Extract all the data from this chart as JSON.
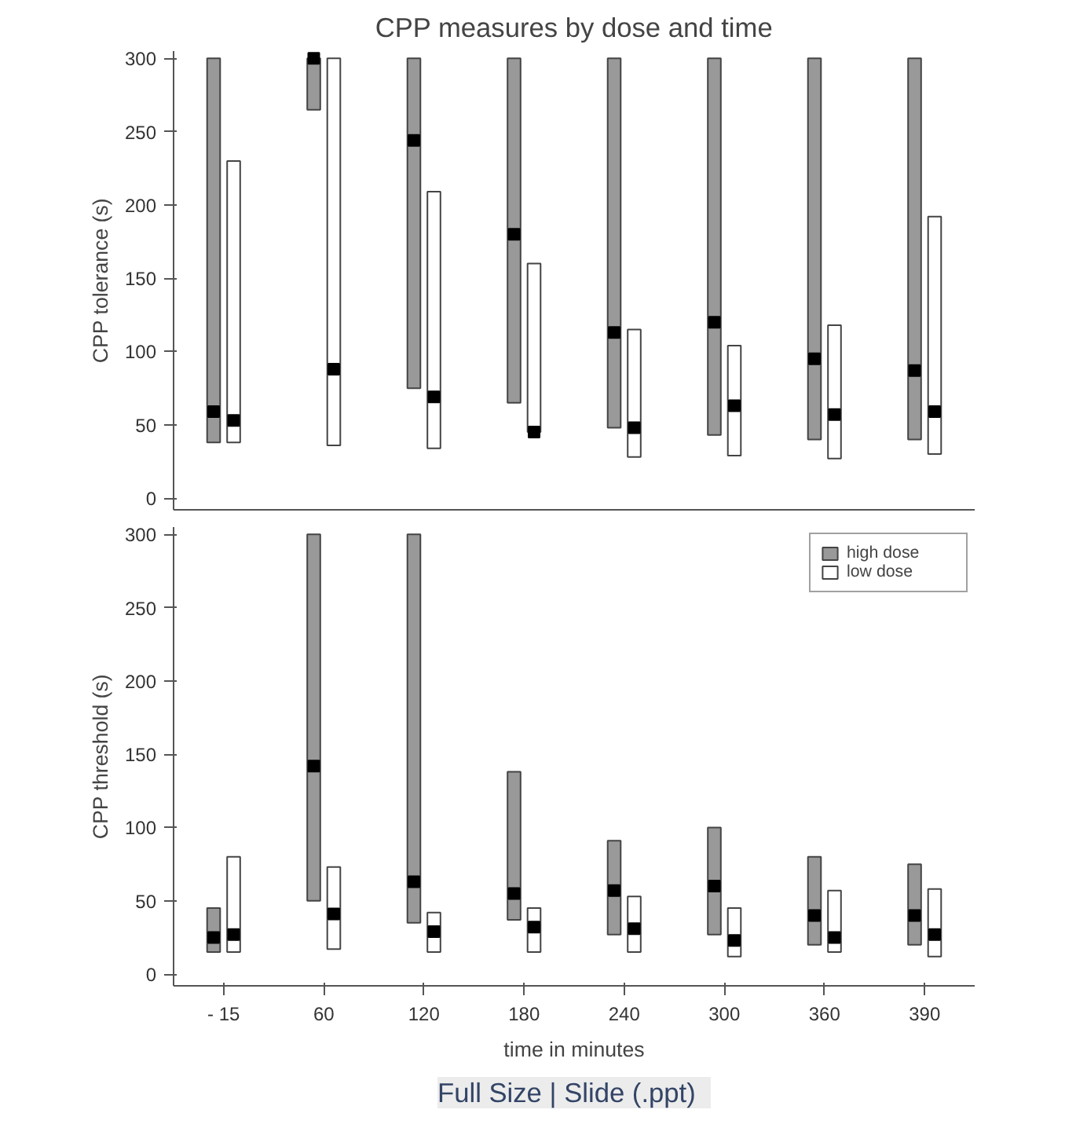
{
  "chart_data": [
    {
      "type": "bar",
      "title": "CPP measures by dose and time",
      "ylabel": "CPP tolerance (s)",
      "categories": [
        null,
        null,
        null,
        null,
        null,
        null,
        null,
        null
      ],
      "tick_labels": "y",
      "ylim": [
        -8,
        305
      ],
      "yticks": [
        0,
        50,
        100,
        150,
        200,
        250,
        300
      ],
      "grid": false,
      "series": [
        {
          "color": "#999999",
          "base": [
            38,
            265,
            75,
            65,
            48,
            43,
            40,
            40
          ],
          "values": [
            262,
            35,
            225,
            235,
            252,
            257,
            260,
            260
          ]
        },
        {
          "color": "#ffffff",
          "base": [
            38,
            36,
            34,
            45,
            28,
            29,
            27,
            30
          ],
          "values": [
            192,
            264,
            175,
            115,
            87,
            75,
            91,
            162
          ]
        },
        {
          "type": "scatter",
          "marker": "square",
          "color": "#000000",
          "values": [
            59,
            300,
            244,
            180,
            113,
            120,
            95,
            87
          ]
        },
        {
          "type": "scatter",
          "marker": "square",
          "color": "#000000",
          "values": [
            53,
            88,
            69,
            45,
            48,
            63,
            57,
            59
          ]
        }
      ]
    },
    {
      "type": "bar",
      "ylabel": "CPP threshold (s)",
      "xlabel": "time in minutes",
      "categories": [
        "- 15",
        "60",
        "120",
        "180",
        "240",
        "300",
        "360",
        "390"
      ],
      "ylim": [
        -8,
        305
      ],
      "yticks": [
        0,
        50,
        100,
        150,
        200,
        250,
        300
      ],
      "grid": false,
      "legend": "top right",
      "annotations": [
        "Full Size  |  Slide (.ppt)"
      ],
      "series": [
        {
          "name": "high dose",
          "color": "#999999",
          "base": [
            15,
            50,
            35,
            37,
            27,
            27,
            20,
            20
          ],
          "values": [
            30,
            250,
            265,
            101,
            64,
            73,
            60,
            55
          ]
        },
        {
          "name": "low dose",
          "color": "#ffffff",
          "base": [
            15,
            17,
            15,
            15,
            15,
            12,
            15,
            12
          ],
          "values": [
            65,
            56,
            27,
            30,
            38,
            33,
            42,
            46
          ]
        },
        {
          "type": "scatter",
          "marker": "square",
          "color": "#000000",
          "x": [
            "- 15",
            "60",
            "120",
            "180",
            "240",
            "300",
            "360",
            "390"
          ],
          "values": [
            25,
            142,
            63,
            55,
            57,
            60,
            40,
            40
          ]
        },
        {
          "type": "scatter",
          "marker": "square",
          "color": "#000000",
          "x": [
            "- 15",
            "60",
            "120",
            "180",
            "240",
            "300",
            "360",
            "390"
          ],
          "values": [
            27,
            41,
            29,
            32,
            31,
            23,
            25,
            27
          ]
        }
      ]
    }
  ]
}
